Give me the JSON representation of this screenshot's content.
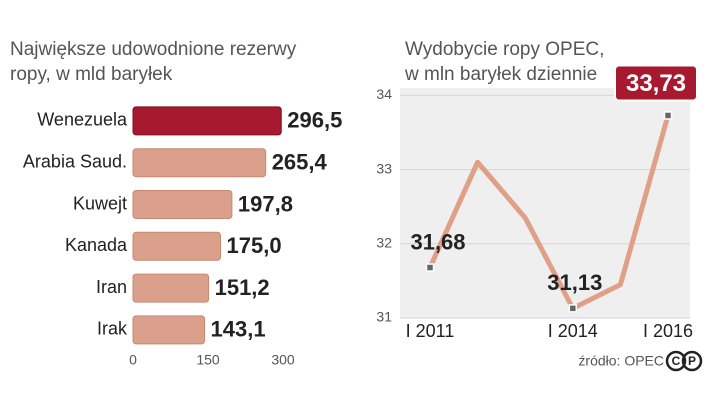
{
  "charts": [
    {
      "chart_data": {
        "type": "hbar",
        "title": [
          "Największe udowodnione rezerwy",
          "ropy, w mld baryłek"
        ],
        "categories": [
          "Wenezuela",
          "Arabia Saud.",
          "Kuwejt",
          "Kanada",
          "Iran",
          "Irak"
        ],
        "values": [
          296.5,
          265.4,
          197.8,
          175.0,
          151.2,
          143.1
        ],
        "value_labels": [
          "296,5",
          "265,4",
          "197,8",
          "175,0",
          "151,2",
          "143,1"
        ],
        "colors": [
          "#a6192e",
          "#dba08b",
          "#dba08b",
          "#dba08b",
          "#dba08b",
          "#dba08b"
        ],
        "xlim": [
          0,
          300
        ],
        "xticks": [
          0,
          150,
          300
        ]
      }
    },
    {
      "chart_data": {
        "type": "line",
        "title": [
          "Wydobycie ropy OPEC,",
          "w mln baryłek dziennie"
        ],
        "categories": [
          "I 2011",
          null,
          null,
          "I 2014",
          null,
          "I 2016"
        ],
        "values": [
          31.68,
          33.1,
          32.35,
          31.13,
          31.45,
          33.73
        ],
        "value_labels": [
          "31,68",
          null,
          null,
          "31,13",
          null,
          "33,73"
        ],
        "color": "#e0a088",
        "ylim": [
          31,
          34.1
        ],
        "yticks": [
          31,
          32,
          33,
          34
        ],
        "grid": true,
        "source": "źródło: OPEC"
      }
    }
  ]
}
